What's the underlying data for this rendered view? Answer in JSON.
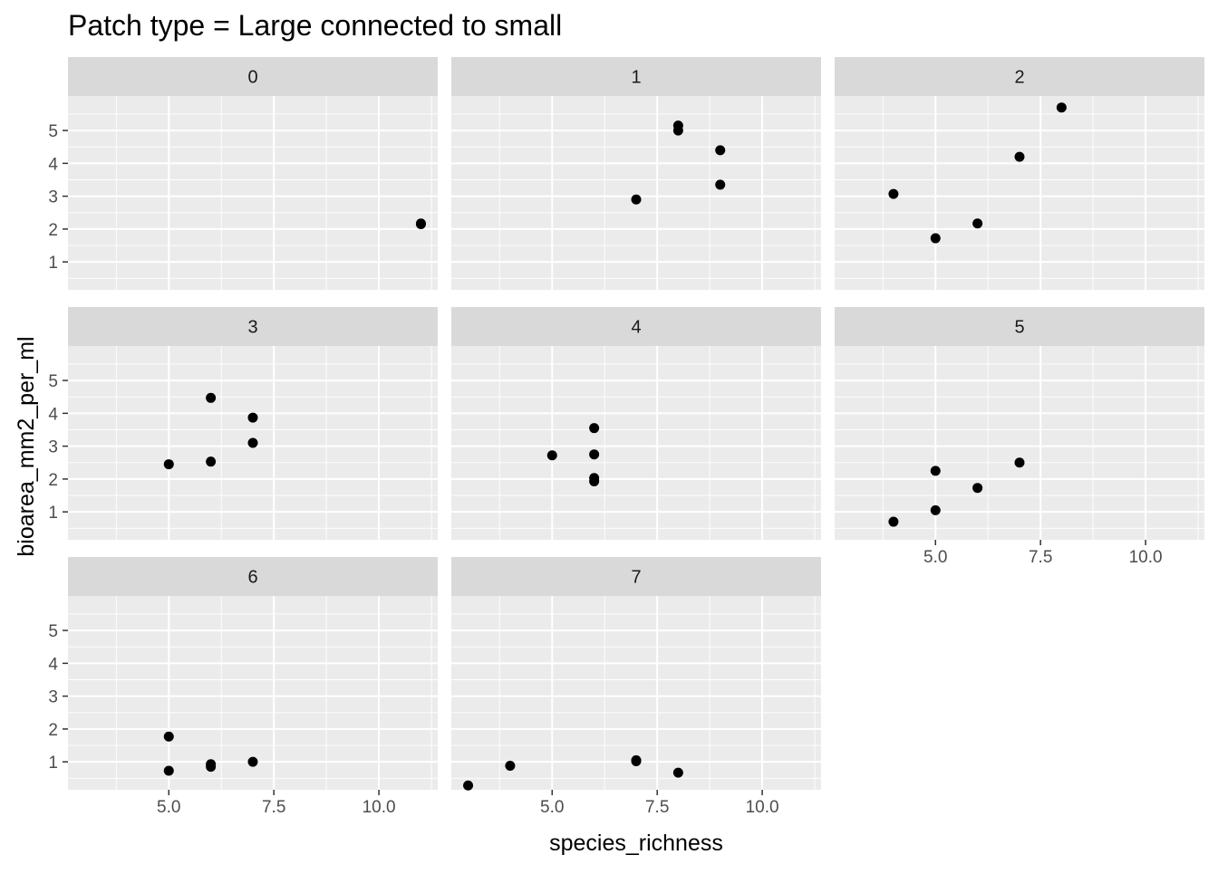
{
  "chart_data": {
    "type": "scatter",
    "title": "Patch type = Large connected to small",
    "xlabel": "species_richness",
    "ylabel": "bioarea_mm2_per_ml",
    "xlim": [
      2.6,
      11.4
    ],
    "ylim": [
      0.15,
      6.05
    ],
    "x_ticks": [
      5.0,
      7.5,
      10.0
    ],
    "x_tick_labels": [
      "5.0",
      "7.5",
      "10.0"
    ],
    "y_ticks": [
      1,
      2,
      3,
      4,
      5
    ],
    "y_tick_labels": [
      "1",
      "2",
      "3",
      "4",
      "5"
    ],
    "grid": true,
    "point_color": "#000000",
    "panel_background": "#ebebeb",
    "strip_background": "#d9d9d9",
    "grid_color": "#ffffff",
    "facets": [
      {
        "label": "0",
        "points": [
          [
            11,
            2.17
          ],
          [
            11,
            2.15
          ]
        ]
      },
      {
        "label": "1",
        "points": [
          [
            7,
            2.9
          ],
          [
            8,
            5.0
          ],
          [
            8,
            5.15
          ],
          [
            9,
            4.4
          ],
          [
            9,
            3.35
          ]
        ]
      },
      {
        "label": "2",
        "points": [
          [
            4,
            3.07
          ],
          [
            5,
            1.72
          ],
          [
            6,
            2.17
          ],
          [
            7,
            4.2
          ],
          [
            8,
            5.7
          ]
        ]
      },
      {
        "label": "3",
        "points": [
          [
            5,
            2.45
          ],
          [
            6,
            4.47
          ],
          [
            6,
            2.53
          ],
          [
            7,
            3.87
          ],
          [
            7,
            3.1
          ]
        ]
      },
      {
        "label": "4",
        "points": [
          [
            5,
            2.72
          ],
          [
            6,
            3.55
          ],
          [
            6,
            2.75
          ],
          [
            6,
            2.03
          ],
          [
            6,
            1.93
          ]
        ]
      },
      {
        "label": "5",
        "points": [
          [
            4,
            0.7
          ],
          [
            5,
            2.25
          ],
          [
            5,
            1.05
          ],
          [
            6,
            1.73
          ],
          [
            7,
            2.5
          ]
        ]
      },
      {
        "label": "6",
        "points": [
          [
            5,
            1.77
          ],
          [
            5,
            0.73
          ],
          [
            6,
            0.93
          ],
          [
            6,
            0.85
          ],
          [
            7,
            1.0
          ]
        ]
      },
      {
        "label": "7",
        "points": [
          [
            3,
            0.28
          ],
          [
            4,
            0.88
          ],
          [
            7,
            1.05
          ],
          [
            7,
            1.02
          ],
          [
            8,
            0.67
          ]
        ]
      }
    ]
  }
}
